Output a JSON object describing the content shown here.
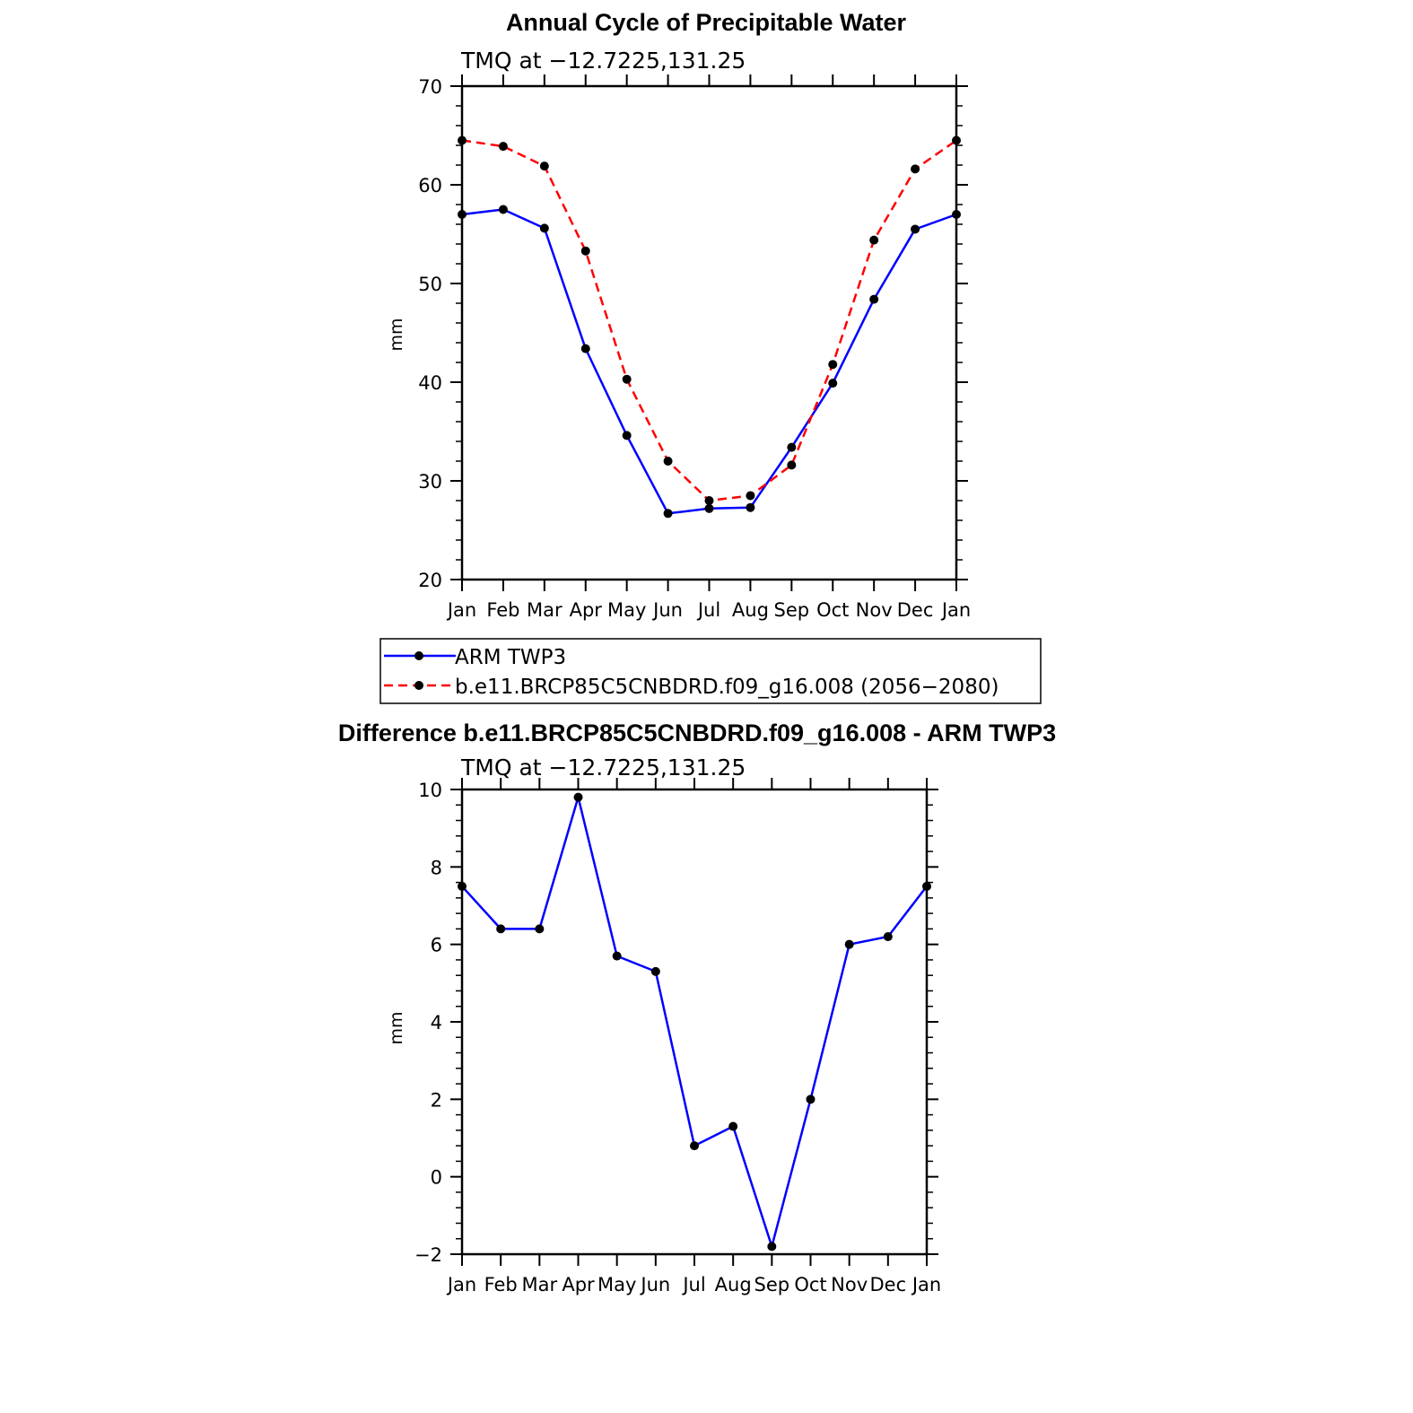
{
  "months": [
    "Jan",
    "Feb",
    "Mar",
    "Apr",
    "May",
    "Jun",
    "Jul",
    "Aug",
    "Sep",
    "Oct",
    "Nov",
    "Dec",
    "Jan"
  ],
  "chart_data": [
    {
      "type": "line",
      "title": "Annual Cycle of Precipitable Water",
      "subtitle": "TMQ at −12.7225,131.25",
      "ylabel": "mm",
      "ylim": [
        20,
        70
      ],
      "yticks": [
        20,
        30,
        40,
        50,
        60,
        70
      ],
      "categories": [
        "Jan",
        "Feb",
        "Mar",
        "Apr",
        "May",
        "Jun",
        "Jul",
        "Aug",
        "Sep",
        "Oct",
        "Nov",
        "Dec",
        "Jan"
      ],
      "series": [
        {
          "name": "ARM TWP3",
          "color": "#0000ff",
          "dash": "solid",
          "values": [
            57.0,
            57.5,
            55.6,
            43.4,
            34.6,
            26.7,
            27.2,
            27.3,
            33.4,
            39.9,
            48.4,
            55.5,
            57.0
          ]
        },
        {
          "name": "b.e11.BRCP85C5CNBDRD.f09_g16.008 (2056−2080)",
          "color": "#ff0000",
          "dash": "dashed",
          "values": [
            64.5,
            63.9,
            61.9,
            53.3,
            40.3,
            32.0,
            28.0,
            28.5,
            31.6,
            41.8,
            54.4,
            61.6,
            64.5
          ]
        }
      ],
      "legend": "bottom"
    },
    {
      "type": "line",
      "title": "Difference b.e11.BRCP85C5CNBDRD.f09_g16.008 - ARM TWP3",
      "subtitle": "TMQ at −12.7225,131.25",
      "ylabel": "mm",
      "ylim": [
        -2,
        10
      ],
      "yticks": [
        "−2",
        "0",
        "2",
        "4",
        "6",
        "8",
        "10"
      ],
      "categories": [
        "Jan",
        "Feb",
        "Mar",
        "Apr",
        "May",
        "Jun",
        "Jul",
        "Aug",
        "Sep",
        "Oct",
        "Nov",
        "Dec",
        "Jan"
      ],
      "series": [
        {
          "color": "#0000ff",
          "dash": "solid",
          "values": [
            7.5,
            6.4,
            6.4,
            9.8,
            5.7,
            5.3,
            0.8,
            1.3,
            -1.8,
            2.0,
            6.0,
            6.2,
            7.5
          ]
        }
      ]
    }
  ]
}
